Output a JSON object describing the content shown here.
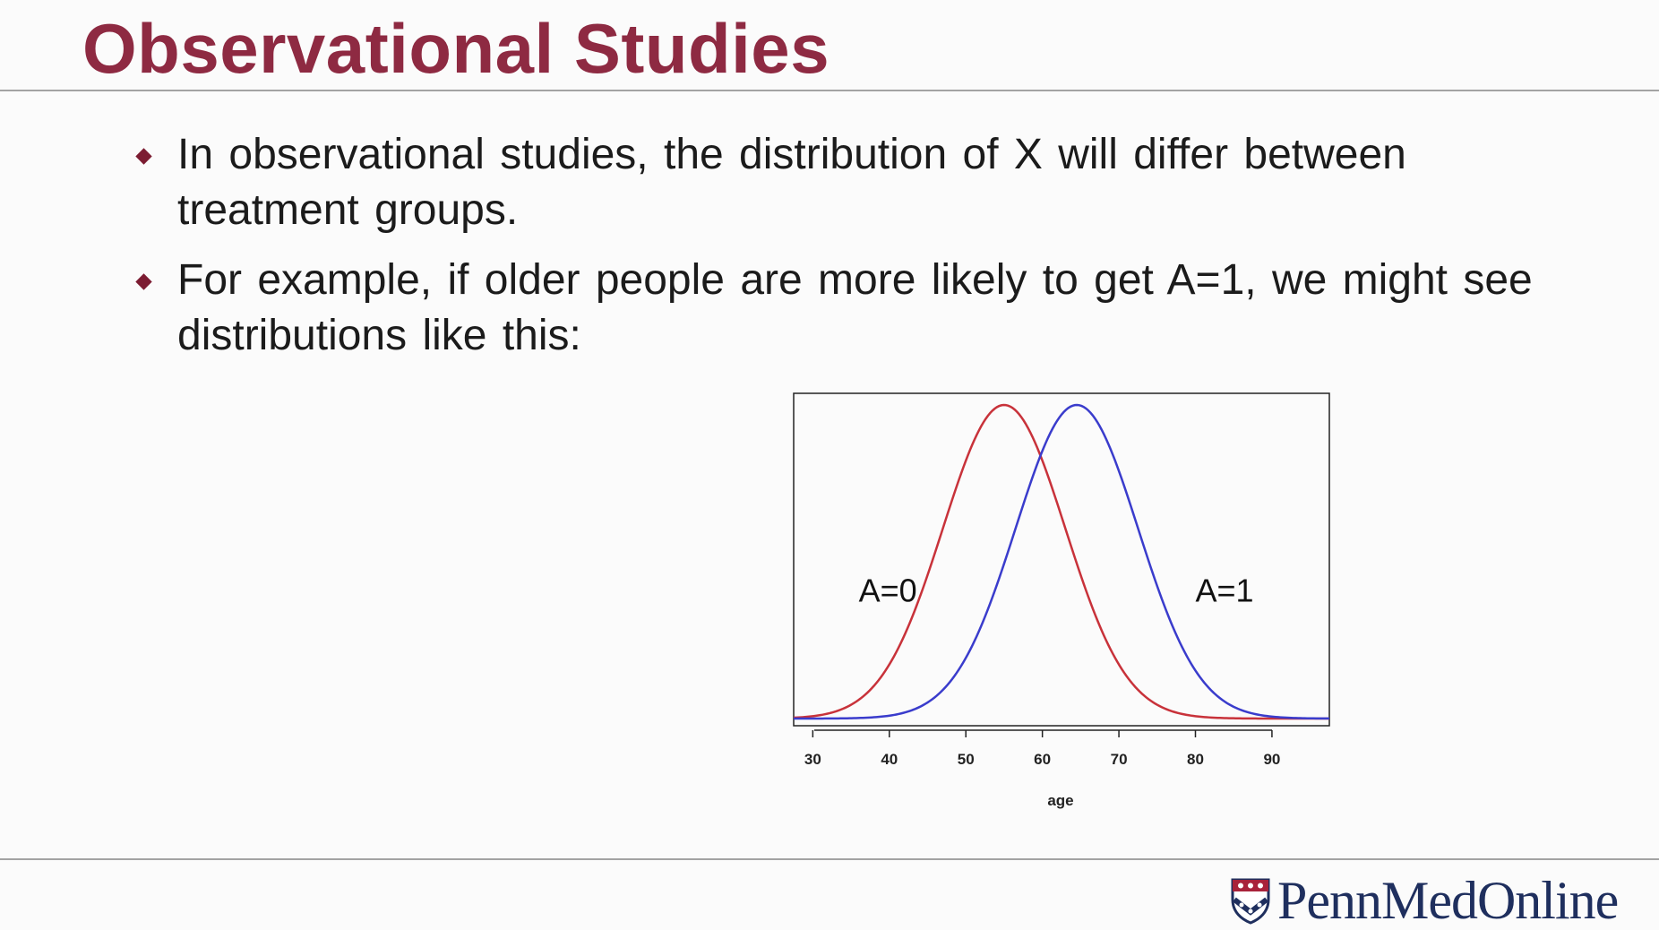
{
  "slide": {
    "title": "Observational Studies",
    "bullets": [
      {
        "text": "In observational studies, the distribution of X will differ between treatment groups."
      },
      {
        "text": "For example, if older people are more likely to get A=1, we might see distributions like this:"
      }
    ]
  },
  "chart_data": {
    "type": "line",
    "xlabel": "age",
    "ylabel": "",
    "xlim": [
      27.5,
      97.5
    ],
    "ylim": [
      0,
      1.0
    ],
    "xticks": [
      30,
      40,
      50,
      60,
      70,
      80,
      90
    ],
    "grid": false,
    "series": [
      {
        "name": "A=0",
        "color": "#c8323a",
        "mean": 55,
        "sd": 8,
        "label": {
          "x": 36,
          "y": 0.41
        }
      },
      {
        "name": "A=1",
        "color": "#3a3ccc",
        "mean": 64.5,
        "sd": 8,
        "label": {
          "x": 80,
          "y": 0.41
        }
      }
    ]
  },
  "logo": {
    "text": "PennMedOnline",
    "icon": "penn-shield-icon"
  }
}
